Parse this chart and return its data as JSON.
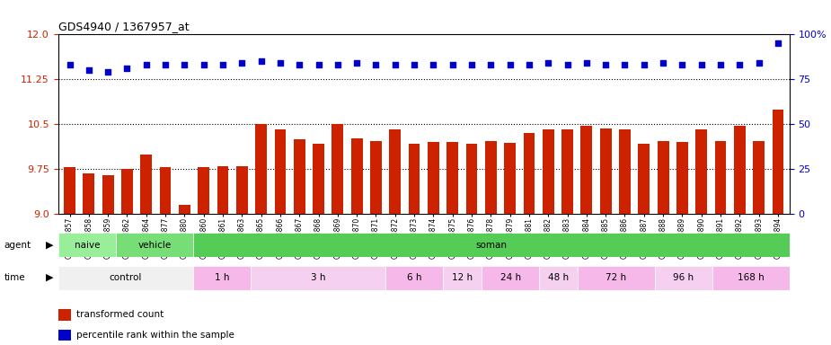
{
  "title": "GDS4940 / 1367957_at",
  "samples": [
    "GSM338857",
    "GSM338858",
    "GSM338859",
    "GSM338862",
    "GSM338864",
    "GSM338877",
    "GSM338880",
    "GSM338860",
    "GSM338861",
    "GSM338863",
    "GSM338865",
    "GSM338866",
    "GSM338867",
    "GSM338868",
    "GSM338869",
    "GSM338870",
    "GSM338871",
    "GSM338872",
    "GSM338873",
    "GSM338874",
    "GSM338875",
    "GSM338876",
    "GSM338878",
    "GSM338879",
    "GSM338881",
    "GSM338882",
    "GSM338883",
    "GSM338884",
    "GSM338885",
    "GSM338886",
    "GSM338887",
    "GSM338888",
    "GSM338889",
    "GSM338890",
    "GSM338891",
    "GSM338892",
    "GSM338893",
    "GSM338894"
  ],
  "bar_values": [
    9.78,
    9.68,
    9.64,
    9.75,
    10.0,
    9.78,
    9.15,
    9.78,
    9.8,
    9.8,
    10.5,
    10.42,
    10.25,
    10.18,
    10.5,
    10.27,
    10.22,
    10.42,
    10.18,
    10.2,
    10.2,
    10.18,
    10.22,
    10.19,
    10.35,
    10.42,
    10.42,
    10.48,
    10.43,
    10.42,
    10.18,
    10.22,
    10.2,
    10.42,
    10.22,
    10.48,
    10.22,
    10.75
  ],
  "percentile_values": [
    83,
    80,
    79,
    81,
    83,
    83,
    83,
    83,
    83,
    84,
    85,
    84,
    83,
    83,
    83,
    84,
    83,
    83,
    83,
    83,
    83,
    83,
    83,
    83,
    83,
    84,
    83,
    84,
    83,
    83,
    83,
    84,
    83,
    83,
    83,
    83,
    84,
    95
  ],
  "ylim_left": [
    9.0,
    12.0
  ],
  "ylim_right": [
    0,
    100
  ],
  "yticks_left": [
    9.0,
    9.75,
    10.5,
    11.25,
    12.0
  ],
  "yticks_right": [
    0,
    25,
    50,
    75,
    100
  ],
  "dotted_lines": [
    9.75,
    10.5,
    11.25
  ],
  "bar_color": "#cc2200",
  "dot_color": "#0000cc",
  "agent_groups": [
    {
      "label": "naive",
      "start": 0,
      "end": 3,
      "color": "#99ee99"
    },
    {
      "label": "vehicle",
      "start": 3,
      "end": 7,
      "color": "#77dd77"
    },
    {
      "label": "soman",
      "start": 7,
      "end": 38,
      "color": "#55cc55"
    }
  ],
  "time_groups": [
    {
      "label": "control",
      "start": 0,
      "end": 7,
      "color": "#f0f0f0"
    },
    {
      "label": "1 h",
      "start": 7,
      "end": 10,
      "color": "#f5b8e8"
    },
    {
      "label": "3 h",
      "start": 10,
      "end": 17,
      "color": "#f5d0f0"
    },
    {
      "label": "6 h",
      "start": 17,
      "end": 20,
      "color": "#f5b8e8"
    },
    {
      "label": "12 h",
      "start": 20,
      "end": 22,
      "color": "#f5d0f0"
    },
    {
      "label": "24 h",
      "start": 22,
      "end": 25,
      "color": "#f5b8e8"
    },
    {
      "label": "48 h",
      "start": 25,
      "end": 27,
      "color": "#f5d0f0"
    },
    {
      "label": "72 h",
      "start": 27,
      "end": 31,
      "color": "#f5b8e8"
    },
    {
      "label": "96 h",
      "start": 31,
      "end": 34,
      "color": "#f5d0f0"
    },
    {
      "label": "168 h",
      "start": 34,
      "end": 38,
      "color": "#f5b8e8"
    }
  ],
  "legend_items": [
    {
      "label": "transformed count",
      "color": "#cc2200"
    },
    {
      "label": "percentile rank within the sample",
      "color": "#0000cc"
    }
  ]
}
